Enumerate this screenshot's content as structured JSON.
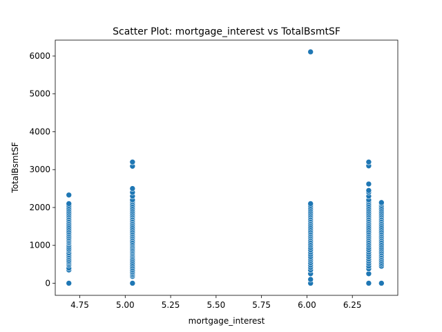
{
  "chart_data": {
    "type": "scatter",
    "title": "Scatter Plot: mortgage_interest vs TotalBsmtSF",
    "xlabel": "mortgage_interest",
    "ylabel": "TotalBsmtSF",
    "xlim": [
      4.615,
      6.5
    ],
    "ylim": [
      -320,
      6420
    ],
    "x_ticks": [
      4.75,
      5.0,
      5.25,
      5.5,
      5.75,
      6.0,
      6.25
    ],
    "x_tick_labels": [
      "4.75",
      "5.00",
      "5.25",
      "5.50",
      "5.75",
      "6.00",
      "6.25"
    ],
    "y_ticks": [
      0,
      1000,
      2000,
      3000,
      4000,
      5000,
      6000
    ],
    "y_tick_labels": [
      "0",
      "1000",
      "2000",
      "3000",
      "4000",
      "5000",
      "6000"
    ],
    "grid": false,
    "legend": "none",
    "point_color": "#1f77b4",
    "series": [
      {
        "x": 4.69,
        "y": [
          0,
          350,
          400,
          480,
          520,
          560,
          600,
          650,
          700,
          750,
          800,
          860,
          900,
          950,
          1000,
          1050,
          1080,
          1120,
          1160,
          1200,
          1250,
          1300,
          1350,
          1400,
          1450,
          1500,
          1550,
          1600,
          1650,
          1700,
          1750,
          1800,
          1850,
          1900,
          1950,
          2000,
          2050,
          2100,
          2330
        ]
      },
      {
        "x": 5.04,
        "y": [
          0,
          180,
          220,
          260,
          300,
          350,
          400,
          450,
          500,
          550,
          600,
          650,
          700,
          740,
          780,
          820,
          860,
          900,
          940,
          980,
          1020,
          1060,
          1100,
          1150,
          1200,
          1250,
          1300,
          1350,
          1400,
          1450,
          1500,
          1550,
          1600,
          1650,
          1700,
          1750,
          1800,
          1850,
          1900,
          1950,
          2000,
          2050,
          2100,
          2150,
          2200,
          2300,
          2400,
          2500,
          3090,
          3200
        ]
      },
      {
        "x": 6.02,
        "y": [
          0,
          100,
          250,
          350,
          420,
          480,
          540,
          600,
          650,
          700,
          760,
          820,
          880,
          940,
          1000,
          1050,
          1100,
          1150,
          1200,
          1250,
          1300,
          1350,
          1400,
          1450,
          1500,
          1550,
          1600,
          1650,
          1700,
          1750,
          1800,
          1850,
          1900,
          1950,
          2000,
          2050,
          2100,
          6110
        ]
      },
      {
        "x": 6.34,
        "y": [
          0,
          250,
          380,
          450,
          520,
          580,
          640,
          700,
          760,
          820,
          880,
          940,
          1000,
          1050,
          1100,
          1150,
          1200,
          1250,
          1300,
          1350,
          1400,
          1450,
          1500,
          1550,
          1600,
          1650,
          1700,
          1750,
          1800,
          1850,
          1900,
          1950,
          2000,
          2050,
          2100,
          2150,
          2200,
          2300,
          2400,
          2450,
          2620,
          3100,
          3200
        ]
      },
      {
        "x": 6.41,
        "y": [
          0,
          450,
          500,
          550,
          600,
          650,
          700,
          750,
          800,
          850,
          900,
          950,
          1000,
          1050,
          1100,
          1150,
          1200,
          1250,
          1300,
          1350,
          1400,
          1450,
          1500,
          1550,
          1600,
          1650,
          1700,
          1750,
          1800,
          1850,
          1900,
          1950,
          2000,
          2050,
          2100,
          2130
        ]
      }
    ]
  }
}
